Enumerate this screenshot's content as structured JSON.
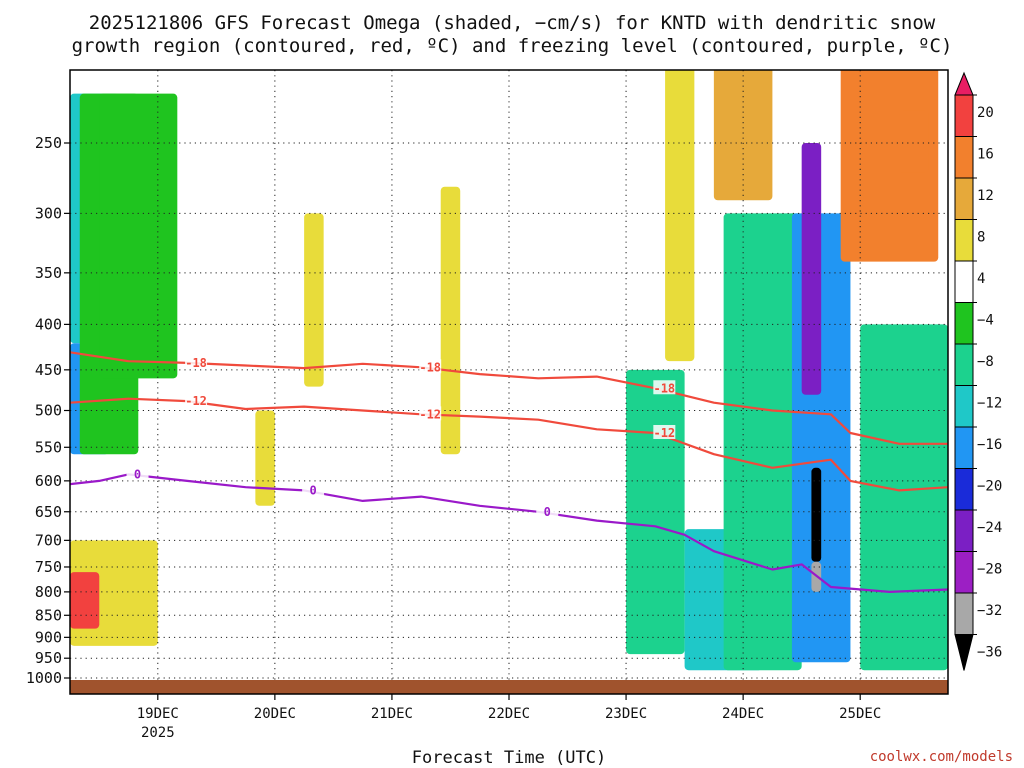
{
  "title_line1": "2025121806 GFS Forecast Omega (shaded, −cm/s) for KNTD with dendritic snow",
  "title_line2": "growth region (contoured, red, ºC) and freezing level (contoured, purple, ºC)",
  "credit": "coolwx.com/models",
  "chart_data": {
    "type": "heatmap",
    "xlabel": "Forecast Time (UTC)",
    "ylabel": "",
    "y_axis": {
      "scale": "log-pressure",
      "ylim": [
        1000,
        200
      ],
      "ticks": [
        250,
        300,
        350,
        400,
        450,
        500,
        550,
        600,
        650,
        700,
        750,
        800,
        850,
        900,
        950,
        1000
      ]
    },
    "x_axis": {
      "range_hours": [
        0,
        180
      ],
      "ticks": [
        {
          "label": "19DEC",
          "sublabel": "2025",
          "hour": 18
        },
        {
          "label": "20DEC",
          "sublabel": "",
          "hour": 42
        },
        {
          "label": "21DEC",
          "sublabel": "",
          "hour": 66
        },
        {
          "label": "22DEC",
          "sublabel": "",
          "hour": 90
        },
        {
          "label": "23DEC",
          "sublabel": "",
          "hour": 114
        },
        {
          "label": "24DEC",
          "sublabel": "",
          "hour": 138
        },
        {
          "label": "25DEC",
          "sublabel": "",
          "hour": 162
        }
      ]
    },
    "grid": true,
    "colorbar": {
      "labels": [
        "20",
        "16",
        "12",
        "8",
        "4",
        "−4",
        "−8",
        "−12",
        "−16",
        "−20",
        "−24",
        "−28",
        "−32",
        "−36"
      ],
      "colors": [
        "#e81e63",
        "#f2413f",
        "#f2802d",
        "#e6a93a",
        "#e8dc3a",
        "#ffffff",
        "#1fc41f",
        "#1cd28e",
        "#1fc8c8",
        "#2196f3",
        "#1a2bd9",
        "#7b1fc4",
        "#9c1fc4",
        "#a8a8a8",
        "#000000"
      ]
    },
    "omega_regions": [
      {
        "x": [
          0,
          10
        ],
        "p": [
          220,
          420
        ],
        "value": -12
      },
      {
        "x": [
          0,
          8
        ],
        "p": [
          420,
          560
        ],
        "value": -18
      },
      {
        "x": [
          2,
          14
        ],
        "p": [
          220,
          560
        ],
        "value": -6
      },
      {
        "x": [
          6,
          22
        ],
        "p": [
          220,
          460
        ],
        "value": -5
      },
      {
        "x": [
          0,
          18
        ],
        "p": [
          700,
          920
        ],
        "value": 6
      },
      {
        "x": [
          0,
          6
        ],
        "p": [
          760,
          880
        ],
        "value": 17
      },
      {
        "x": [
          48,
          52
        ],
        "p": [
          300,
          470
        ],
        "value": 5
      },
      {
        "x": [
          38,
          42
        ],
        "p": [
          500,
          640
        ],
        "value": 5
      },
      {
        "x": [
          76,
          80
        ],
        "p": [
          280,
          560
        ],
        "value": 6
      },
      {
        "x": [
          122,
          128
        ],
        "p": [
          200,
          440
        ],
        "value": 6
      },
      {
        "x": [
          114,
          126
        ],
        "p": [
          450,
          940
        ],
        "value": -9
      },
      {
        "x": [
          126,
          142
        ],
        "p": [
          680,
          980
        ],
        "value": -13
      },
      {
        "x": [
          134,
          150
        ],
        "p": [
          300,
          980
        ],
        "value": -8
      },
      {
        "x": [
          148,
          160
        ],
        "p": [
          300,
          960
        ],
        "value": -18
      },
      {
        "x": [
          150,
          154
        ],
        "p": [
          250,
          480
        ],
        "value": -27
      },
      {
        "x": [
          152,
          154
        ],
        "p": [
          580,
          740
        ],
        "value": -36
      },
      {
        "x": [
          152,
          154
        ],
        "p": [
          740,
          800
        ],
        "value": -33
      },
      {
        "x": [
          132,
          144
        ],
        "p": [
          200,
          290
        ],
        "value": 11
      },
      {
        "x": [
          158,
          178
        ],
        "p": [
          200,
          340
        ],
        "value": 12
      },
      {
        "x": [
          170,
          176
        ],
        "p": [
          230,
          270
        ],
        "value": 15
      },
      {
        "x": [
          162,
          180
        ],
        "p": [
          400,
          980
        ],
        "value": -10
      }
    ],
    "series": [
      {
        "name": "-18",
        "color": "#f04a3c",
        "x": [
          0,
          12,
          24,
          36,
          48,
          60,
          72,
          84,
          96,
          108,
          120,
          132,
          144,
          156,
          160,
          170,
          180
        ],
        "y": [
          430,
          440,
          442,
          445,
          448,
          443,
          447,
          455,
          460,
          458,
          472,
          490,
          500,
          505,
          530,
          545,
          545
        ]
      },
      {
        "name": "-12",
        "color": "#f04a3c",
        "x": [
          0,
          12,
          24,
          36,
          48,
          60,
          72,
          84,
          96,
          108,
          120,
          132,
          144,
          156,
          160,
          170,
          180
        ],
        "y": [
          490,
          485,
          488,
          498,
          495,
          500,
          505,
          508,
          512,
          525,
          530,
          560,
          580,
          568,
          600,
          615,
          610
        ]
      },
      {
        "name": "0",
        "color": "#9a19c9",
        "x": [
          0,
          6,
          12,
          18,
          24,
          36,
          48,
          60,
          72,
          84,
          96,
          108,
          120,
          126,
          132,
          144,
          150,
          156,
          168,
          180
        ],
        "y": [
          605,
          600,
          590,
          595,
          600,
          610,
          615,
          632,
          625,
          640,
          650,
          665,
          675,
          690,
          720,
          755,
          745,
          790,
          800,
          795
        ]
      }
    ]
  }
}
